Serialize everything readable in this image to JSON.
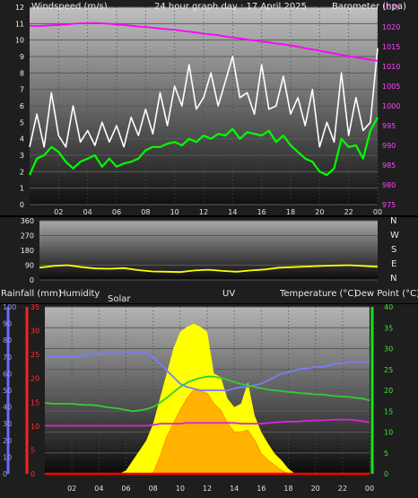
{
  "page": {
    "title": "24 hour graph day : 17 April 2025",
    "wind_label": "Windspeed (m/s)",
    "baro_label": "Barometer (hpa)",
    "rain_label": "Rainfall (mm)",
    "humidity_label": "Humidity",
    "solar_label": "Solar",
    "uv_label": "UV",
    "temp_label": "Temperature (°C)",
    "dew_label": "Dew Point (°C)"
  },
  "colors": {
    "wind_gust": "#ffffff",
    "wind_avg": "#00ff00",
    "barometer": "#ff00ff",
    "wind_direction": "#ffff00",
    "temperature": "#32cd32",
    "dewpoint": "#dd22dd",
    "humidity": "#7a7aff",
    "solar": "#ffff00",
    "uv": "#ff9900",
    "rain": "#ff0000"
  },
  "chart_data": [
    {
      "type": "line",
      "title": "24 hour graph day : 17 April 2025",
      "ylabel": "Windspeed (m/s)",
      "y2label": "Barometer (hpa)",
      "x_ticks": [
        "02",
        "04",
        "06",
        "08",
        "10",
        "12",
        "14",
        "16",
        "18",
        "20",
        "22",
        "00"
      ],
      "ylim": [
        0,
        12
      ],
      "yticks": [
        0,
        1,
        2,
        3,
        4,
        5,
        6,
        7,
        8,
        9,
        10,
        11,
        12
      ],
      "y2lim": [
        975,
        1025
      ],
      "y2ticks": [
        975,
        980,
        985,
        990,
        995,
        1000,
        1005,
        1010,
        1015,
        1020,
        1025
      ],
      "x_hours": [
        0,
        0.5,
        1,
        1.5,
        2,
        2.5,
        3,
        3.5,
        4,
        4.5,
        5,
        5.5,
        6,
        6.5,
        7,
        7.5,
        8,
        8.5,
        9,
        9.5,
        10,
        10.5,
        11,
        11.5,
        12,
        12.5,
        13,
        13.5,
        14,
        14.5,
        15,
        15.5,
        16,
        16.5,
        17,
        17.5,
        18,
        18.5,
        19,
        19.5,
        20,
        20.5,
        21,
        21.5,
        22,
        22.5,
        23,
        23.5,
        24
      ],
      "series": [
        {
          "id": "gust",
          "values": [
            3.5,
            5.5,
            3.5,
            6.8,
            4.2,
            3.5,
            6.0,
            3.8,
            4.5,
            3.6,
            5.0,
            3.8,
            4.8,
            3.5,
            5.3,
            4.2,
            5.8,
            4.3,
            6.8,
            4.8,
            7.2,
            6.0,
            8.5,
            5.8,
            6.5,
            8.0,
            6.0,
            7.5,
            9.0,
            6.5,
            6.8,
            5.5,
            8.5,
            5.8,
            6.0,
            7.8,
            5.5,
            6.5,
            4.8,
            7.0,
            3.5,
            5.0,
            3.8,
            8.0,
            4.2,
            6.5,
            4.5,
            5.0,
            9.5
          ]
        },
        {
          "id": "average",
          "values": [
            1.8,
            2.8,
            3.0,
            3.5,
            3.2,
            2.6,
            2.2,
            2.6,
            2.8,
            3.0,
            2.3,
            2.8,
            2.3,
            2.5,
            2.6,
            2.8,
            3.3,
            3.5,
            3.5,
            3.7,
            3.8,
            3.6,
            4.0,
            3.8,
            4.2,
            4.0,
            4.3,
            4.2,
            4.6,
            4.0,
            4.4,
            4.3,
            4.2,
            4.5,
            3.8,
            4.2,
            3.6,
            3.2,
            2.8,
            2.6,
            2.0,
            1.8,
            2.2,
            4.0,
            3.5,
            3.6,
            2.8,
            4.5,
            5.3
          ]
        },
        {
          "id": "barometer",
          "values": [
            1020.3,
            1020.2,
            1020.3,
            1020.4,
            1020.5,
            1020.6,
            1020.8,
            1020.9,
            1020.9,
            1021.0,
            1020.9,
            1020.8,
            1020.6,
            1020.5,
            1020.3,
            1020.1,
            1020.0,
            1019.8,
            1019.6,
            1019.4,
            1019.3,
            1019.0,
            1018.8,
            1018.6,
            1018.3,
            1018.1,
            1017.9,
            1017.6,
            1017.3,
            1017.1,
            1016.8,
            1016.6,
            1016.3,
            1016.1,
            1015.8,
            1015.6,
            1015.3,
            1015.0,
            1014.6,
            1014.3,
            1014.0,
            1013.6,
            1013.3,
            1012.9,
            1012.6,
            1012.3,
            1012.0,
            1011.7,
            1011.4
          ]
        }
      ]
    },
    {
      "type": "line",
      "x_ticks": [
        "02",
        "04",
        "06",
        "08",
        "10",
        "12",
        "14",
        "16",
        "18",
        "20",
        "22",
        "00"
      ],
      "ylim": [
        0,
        360
      ],
      "yticks": [
        0,
        90,
        180,
        270,
        360
      ],
      "y_tick_labels": [
        "0",
        "90",
        "180",
        "270",
        "360"
      ],
      "direction_labels": [
        "N",
        "W",
        "S",
        "E",
        "N"
      ],
      "x_hours": [
        0,
        1,
        2,
        3,
        4,
        5,
        6,
        7,
        8,
        9,
        10,
        11,
        12,
        13,
        14,
        15,
        16,
        17,
        18,
        19,
        20,
        21,
        22,
        23,
        24
      ],
      "series": [
        {
          "id": "direction",
          "values": [
            75,
            85,
            90,
            78,
            70,
            68,
            72,
            60,
            52,
            50,
            48,
            58,
            62,
            55,
            50,
            58,
            64,
            75,
            78,
            82,
            85,
            88,
            90,
            85,
            80
          ]
        }
      ]
    },
    {
      "type": "area",
      "x_ticks": [
        "02",
        "04",
        "06",
        "08",
        "10",
        "12",
        "14",
        "16",
        "18",
        "20",
        "22",
        "00"
      ],
      "humidity_axis": {
        "ylim": [
          0,
          100
        ],
        "yticks": [
          0,
          10,
          20,
          30,
          40,
          50,
          60,
          70,
          80,
          90,
          100
        ]
      },
      "rain_axis": {
        "ylim": [
          0,
          35
        ],
        "yticks": [
          0,
          5,
          10,
          15,
          20,
          25,
          30,
          35
        ]
      },
      "temperature_axis": {
        "ylim": [
          0,
          40
        ],
        "yticks": [
          0,
          5,
          10,
          15,
          20,
          25,
          30,
          35,
          40
        ]
      },
      "x_hours": [
        0,
        0.5,
        1,
        1.5,
        2,
        2.5,
        3,
        3.5,
        4,
        4.5,
        5,
        5.5,
        6,
        6.5,
        7,
        7.5,
        8,
        8.5,
        9,
        9.5,
        10,
        10.5,
        11,
        11.5,
        12,
        12.5,
        13,
        13.5,
        14,
        14.5,
        15,
        15.5,
        16,
        16.5,
        17,
        17.5,
        18,
        18.5,
        19,
        19.5,
        20,
        20.5,
        21,
        21.5,
        22,
        22.5,
        23,
        23.5,
        24
      ],
      "series": [
        {
          "id": "humidity",
          "values": [
            70,
            70,
            70,
            70,
            70,
            70,
            71,
            72,
            72,
            72,
            73,
            73,
            73,
            73,
            73,
            72,
            70,
            66,
            62,
            58,
            54,
            52,
            51,
            50,
            50,
            50,
            50,
            50,
            51,
            52,
            52,
            53,
            54,
            56,
            58,
            60,
            61,
            62,
            63,
            63,
            64,
            64,
            65,
            66,
            66,
            67,
            67,
            67,
            67
          ]
        },
        {
          "id": "temperature",
          "values": [
            17,
            16.8,
            16.8,
            16.8,
            16.8,
            16.6,
            16.5,
            16.5,
            16.3,
            16.0,
            15.8,
            15.6,
            15.3,
            15.0,
            15.2,
            15.5,
            16.0,
            17.0,
            18.2,
            19.5,
            20.8,
            21.8,
            22.5,
            23.0,
            23.3,
            23.3,
            23.0,
            22.5,
            22.0,
            21.5,
            21.2,
            20.8,
            20.5,
            20.2,
            20.0,
            19.8,
            19.6,
            19.5,
            19.3,
            19.2,
            19.0,
            19.0,
            18.8,
            18.6,
            18.5,
            18.4,
            18.2,
            18.0,
            17.6
          ]
        },
        {
          "id": "dewpoint",
          "values": [
            11.5,
            11.5,
            11.5,
            11.5,
            11.5,
            11.5,
            11.5,
            11.5,
            11.5,
            11.5,
            11.5,
            11.5,
            11.5,
            11.5,
            11.5,
            11.5,
            11.7,
            12.0,
            12.0,
            12.0,
            12.0,
            12.2,
            12.2,
            12.2,
            12.2,
            12.2,
            12.2,
            12.2,
            12.2,
            12.0,
            12.0,
            12.0,
            12.0,
            12.2,
            12.3,
            12.4,
            12.5,
            12.5,
            12.6,
            12.7,
            12.8,
            12.8,
            12.9,
            13.0,
            13.0,
            13.0,
            12.8,
            12.6,
            12.3
          ]
        },
        {
          "id": "solar_pct",
          "values": [
            0,
            0,
            0,
            0,
            0,
            0,
            0,
            0,
            0,
            0,
            0,
            0,
            2,
            8,
            14,
            20,
            30,
            45,
            60,
            75,
            85,
            88,
            90,
            88,
            85,
            60,
            58,
            45,
            40,
            42,
            55,
            35,
            25,
            18,
            12,
            8,
            3,
            0,
            0,
            0,
            0,
            0,
            0,
            0,
            0,
            0,
            0,
            0,
            0
          ]
        },
        {
          "id": "uv_pct",
          "values": [
            0,
            0,
            0,
            0,
            0,
            0,
            0,
            0,
            0,
            0,
            0,
            0,
            0,
            0,
            0,
            0,
            0,
            10,
            22,
            30,
            38,
            45,
            50,
            50,
            48,
            42,
            38,
            30,
            25,
            25,
            26,
            20,
            12,
            8,
            5,
            2,
            0,
            0,
            0,
            0,
            0,
            0,
            0,
            0,
            0,
            0,
            0,
            0,
            0
          ]
        },
        {
          "id": "rain",
          "values": [
            0,
            0,
            0,
            0,
            0,
            0,
            0,
            0,
            0,
            0,
            0,
            0,
            0,
            0,
            0,
            0,
            0,
            0,
            0,
            0,
            0,
            0,
            0,
            0,
            0,
            0,
            0,
            0,
            0,
            0,
            0,
            0,
            0,
            0,
            0,
            0,
            0,
            0,
            0,
            0,
            0,
            0,
            0,
            0,
            0,
            0,
            0,
            0,
            0
          ]
        }
      ]
    }
  ]
}
